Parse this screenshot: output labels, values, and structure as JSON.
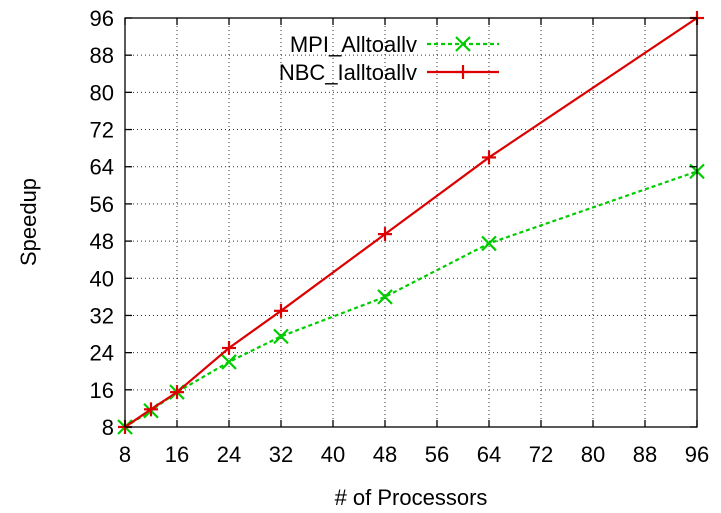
{
  "chart_data": {
    "type": "line",
    "title": "",
    "xlabel": "# of Processors",
    "ylabel": "Speedup",
    "x_ticks": [
      8,
      16,
      24,
      32,
      40,
      48,
      56,
      64,
      72,
      80,
      88,
      96
    ],
    "y_ticks": [
      8,
      16,
      24,
      32,
      40,
      48,
      56,
      64,
      72,
      80,
      88,
      96
    ],
    "xlim": [
      8,
      96
    ],
    "ylim": [
      8,
      96
    ],
    "grid": true,
    "legend_position": "top-center",
    "series": [
      {
        "name": "MPI_Alltoallv",
        "color": "#00cc00",
        "line_style": "dashed",
        "marker": "x",
        "x": [
          8,
          12,
          16,
          24,
          32,
          48,
          64,
          96
        ],
        "y": [
          8,
          11.5,
          15.5,
          22,
          27.5,
          36,
          47.5,
          63
        ]
      },
      {
        "name": "NBC_Ialltoallv",
        "color": "#dd0000",
        "line_style": "solid",
        "marker": "plus",
        "x": [
          8,
          12,
          16,
          24,
          32,
          48,
          64,
          96
        ],
        "y": [
          8,
          11.8,
          15.5,
          25,
          33,
          49.5,
          66,
          96
        ]
      }
    ]
  }
}
